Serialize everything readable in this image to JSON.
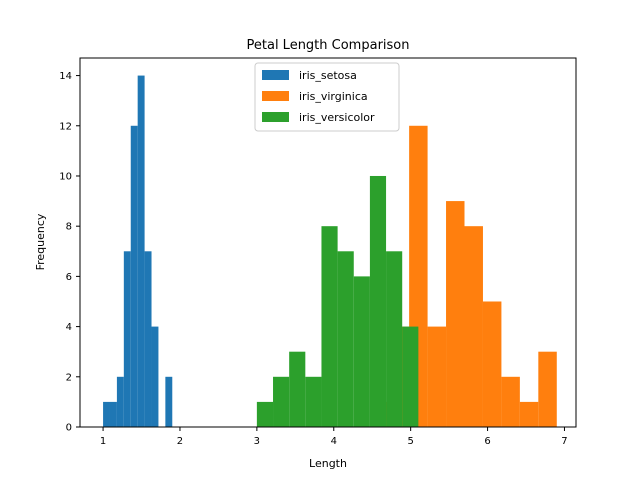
{
  "chart_data": {
    "type": "histogram",
    "title": "Petal Length Comparison",
    "xlabel": "Length",
    "ylabel": "Frequency",
    "xlim": [
      0.7,
      7.15
    ],
    "ylim": [
      0,
      14.7
    ],
    "xticks": [
      1,
      2,
      3,
      4,
      5,
      6,
      7
    ],
    "yticks": [
      0,
      2,
      4,
      6,
      8,
      10,
      12,
      14
    ],
    "grid": false,
    "legend": "top-center",
    "series": [
      {
        "name": "iris_setosa",
        "color": "#1f77b4",
        "bins": [
          {
            "x0": 1.0,
            "x1": 1.09,
            "count": 1
          },
          {
            "x0": 1.09,
            "x1": 1.18,
            "count": 1
          },
          {
            "x0": 1.18,
            "x1": 1.27,
            "count": 2
          },
          {
            "x0": 1.27,
            "x1": 1.36,
            "count": 7
          },
          {
            "x0": 1.36,
            "x1": 1.45,
            "count": 12
          },
          {
            "x0": 1.45,
            "x1": 1.54,
            "count": 14
          },
          {
            "x0": 1.54,
            "x1": 1.63,
            "count": 7
          },
          {
            "x0": 1.63,
            "x1": 1.72,
            "count": 4
          },
          {
            "x0": 1.72,
            "x1": 1.81,
            "count": 0
          },
          {
            "x0": 1.81,
            "x1": 1.9,
            "count": 2
          }
        ]
      },
      {
        "name": "iris_virginica",
        "color": "#ff7f0e",
        "bins": [
          {
            "x0": 4.5,
            "x1": 4.74,
            "count": 1
          },
          {
            "x0": 4.74,
            "x1": 4.98,
            "count": 4
          },
          {
            "x0": 4.98,
            "x1": 5.22,
            "count": 12
          },
          {
            "x0": 5.22,
            "x1": 5.46,
            "count": 4
          },
          {
            "x0": 5.46,
            "x1": 5.7,
            "count": 9
          },
          {
            "x0": 5.7,
            "x1": 5.94,
            "count": 8
          },
          {
            "x0": 5.94,
            "x1": 6.18,
            "count": 5
          },
          {
            "x0": 6.18,
            "x1": 6.42,
            "count": 2
          },
          {
            "x0": 6.42,
            "x1": 6.66,
            "count": 1
          },
          {
            "x0": 6.66,
            "x1": 6.9,
            "count": 3
          }
        ]
      },
      {
        "name": "iris_versicolor",
        "color": "#2ca02c",
        "bins": [
          {
            "x0": 3.0,
            "x1": 3.21,
            "count": 1
          },
          {
            "x0": 3.21,
            "x1": 3.42,
            "count": 2
          },
          {
            "x0": 3.42,
            "x1": 3.63,
            "count": 3
          },
          {
            "x0": 3.63,
            "x1": 3.84,
            "count": 2
          },
          {
            "x0": 3.84,
            "x1": 4.05,
            "count": 8
          },
          {
            "x0": 4.05,
            "x1": 4.26,
            "count": 7
          },
          {
            "x0": 4.26,
            "x1": 4.47,
            "count": 6
          },
          {
            "x0": 4.47,
            "x1": 4.68,
            "count": 10
          },
          {
            "x0": 4.68,
            "x1": 4.89,
            "count": 7
          },
          {
            "x0": 4.89,
            "x1": 5.1,
            "count": 4
          }
        ]
      }
    ]
  }
}
